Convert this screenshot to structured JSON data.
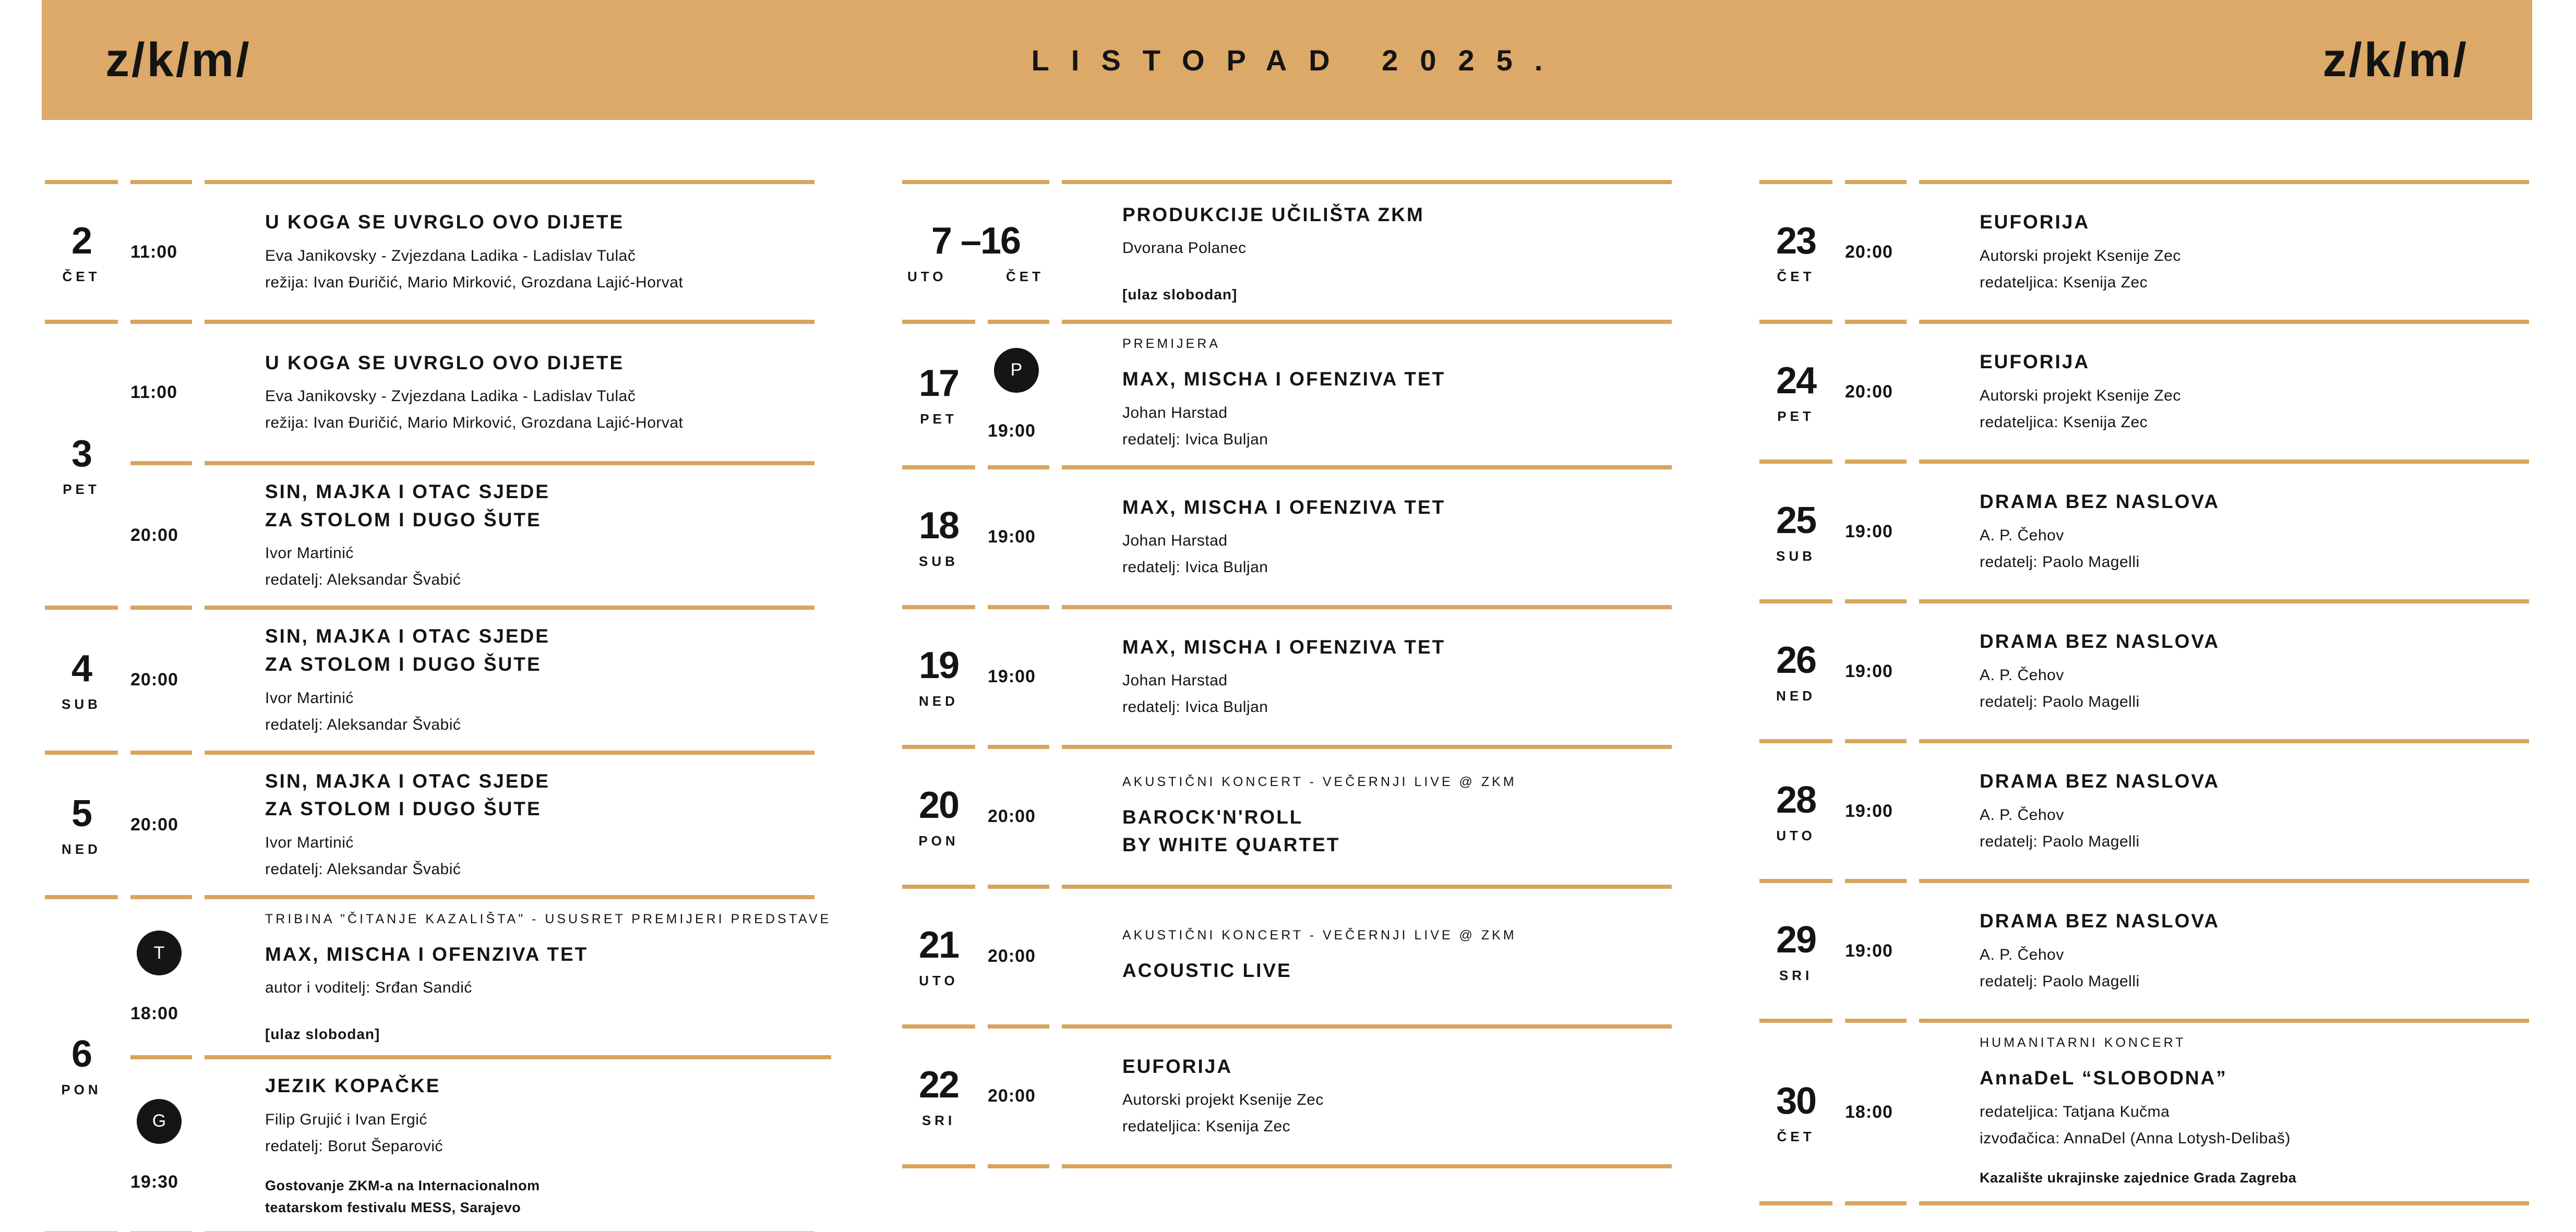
{
  "header": {
    "logo_left": "z/k/m/",
    "title": "LISTOPAD 2025.",
    "logo_right": "z/k/m/"
  },
  "colors": {
    "header_bg": "#dca968",
    "rule_gold": "#d9a45f",
    "badge_bg": "#151515",
    "text": "#141414"
  },
  "columns": [
    {
      "rows": [
        {
          "date": "2",
          "days": [
            "ČET"
          ],
          "events": [
            {
              "time": "11:00",
              "title_lines": [
                "U KOGA SE UVRGLO OVO DIJETE"
              ],
              "meta": [
                "Eva Janikovsky - Zvjezdana Ladika - Ladislav Tulač",
                "režija: Ivan Đuričić, Mario Mirković, Grozdana Lajić-Horvat"
              ]
            }
          ]
        },
        {
          "date": "3",
          "days": [
            "PET"
          ],
          "height": "double",
          "events": [
            {
              "time": "11:00",
              "title_lines": [
                "U KOGA SE UVRGLO OVO DIJETE"
              ],
              "meta": [
                "Eva Janikovsky - Zvjezdana Ladika - Ladislav Tulač",
                "režija: Ivan Đuričić, Mario Mirković, Grozdana Lajić-Horvat"
              ]
            },
            {
              "time": "20:00",
              "title_lines": [
                "SIN, MAJKA I OTAC SJEDE",
                "ZA STOLOM I DUGO ŠUTE"
              ],
              "meta": [
                "Ivor Martinić",
                "redatelj: Aleksandar Švabić"
              ]
            }
          ]
        },
        {
          "date": "4",
          "days": [
            "SUB"
          ],
          "events": [
            {
              "time": "20:00",
              "title_lines": [
                "SIN, MAJKA I OTAC SJEDE",
                "ZA STOLOM I DUGO ŠUTE"
              ],
              "meta": [
                "Ivor Martinić",
                "redatelj: Aleksandar Švabić"
              ]
            }
          ]
        },
        {
          "date": "5",
          "days": [
            "NED"
          ],
          "events": [
            {
              "time": "20:00",
              "title_lines": [
                "SIN, MAJKA I OTAC SJEDE",
                "ZA STOLOM I DUGO ŠUTE"
              ],
              "meta": [
                "Ivor Martinić",
                "redatelj: Aleksandar Švabić"
              ]
            }
          ]
        },
        {
          "date": "6",
          "days": [
            "PON"
          ],
          "height": "tall",
          "events": [
            {
              "badge": "T",
              "time": "18:00",
              "kicker": "TRIBINA \"ČITANJE KAZALIŠTA\" - USUSRET PREMIJERI PREDSTAVE",
              "title_lines": [
                "MAX, MISCHA I OFENZIVA TET"
              ],
              "meta": [
                "autor i voditelj: Srđan Sandić"
              ],
              "note": "[ulaz slobodan]"
            },
            {
              "badge": "G",
              "time": "19:30",
              "title_lines": [
                "JEZIK KOPAČKE"
              ],
              "meta": [
                "Filip Grujić i Ivan Ergić",
                "redatelj: Borut Šeparović"
              ],
              "bold_note_lines": [
                "Gostovanje ZKM-a na Internacionalnom",
                "teatarskom festivalu MESS, Sarajevo"
              ]
            }
          ]
        }
      ]
    },
    {
      "rows": [
        {
          "date": "7 –16",
          "days": [
            "UTO",
            "ČET"
          ],
          "merged": true,
          "events": [
            {
              "title_lines": [
                "PRODUKCIJE UČILIŠTA ZKM"
              ],
              "meta": [
                "Dvorana Polanec"
              ],
              "note": "[ulaz slobodan]"
            }
          ]
        },
        {
          "date": "17",
          "days": [
            "PET"
          ],
          "events": [
            {
              "badge": "P",
              "time": "19:00",
              "kicker": "PREMIJERA",
              "title_lines": [
                "MAX, MISCHA I OFENZIVA TET"
              ],
              "meta": [
                "Johan Harstad",
                "redatelj: Ivica Buljan"
              ]
            }
          ]
        },
        {
          "date": "18",
          "days": [
            "SUB"
          ],
          "events": [
            {
              "time": "19:00",
              "title_lines": [
                "MAX, MISCHA I OFENZIVA TET"
              ],
              "meta": [
                "Johan Harstad",
                "redatelj: Ivica Buljan"
              ]
            }
          ]
        },
        {
          "date": "19",
          "days": [
            "NED"
          ],
          "events": [
            {
              "time": "19:00",
              "title_lines": [
                "MAX, MISCHA I OFENZIVA TET"
              ],
              "meta": [
                "Johan Harstad",
                "redatelj: Ivica Buljan"
              ]
            }
          ]
        },
        {
          "date": "20",
          "days": [
            "PON"
          ],
          "events": [
            {
              "time": "20:00",
              "kicker": "AKUSTIČNI KONCERT - VEČERNJI LIVE @ ZKM",
              "title_lines": [
                "BAROCK'N'ROLL",
                "BY WHITE QUARTET"
              ]
            }
          ]
        },
        {
          "date": "21",
          "days": [
            "UTO"
          ],
          "events": [
            {
              "time": "20:00",
              "kicker": "AKUSTIČNI KONCERT - VEČERNJI LIVE @ ZKM",
              "title_lines": [
                "ACOUSTIC LIVE"
              ]
            }
          ]
        },
        {
          "date": "22",
          "days": [
            "SRI"
          ],
          "events": [
            {
              "time": "20:00",
              "title_lines": [
                "EUFORIJA"
              ],
              "meta": [
                "Autorski projekt Ksenije Zec",
                "redateljica: Ksenija Zec"
              ]
            }
          ]
        }
      ]
    },
    {
      "rows": [
        {
          "date": "23",
          "days": [
            "ČET"
          ],
          "events": [
            {
              "time": "20:00",
              "title_lines": [
                "EUFORIJA"
              ],
              "meta": [
                "Autorski projekt Ksenije Zec",
                "redateljica: Ksenija Zec"
              ]
            }
          ]
        },
        {
          "date": "24",
          "days": [
            "PET"
          ],
          "events": [
            {
              "time": "20:00",
              "title_lines": [
                "EUFORIJA"
              ],
              "meta": [
                "Autorski projekt Ksenije Zec",
                "redateljica: Ksenija Zec"
              ]
            }
          ]
        },
        {
          "date": "25",
          "days": [
            "SUB"
          ],
          "events": [
            {
              "time": "19:00",
              "title_lines": [
                "DRAMA BEZ NASLOVA"
              ],
              "meta": [
                "A. P. Čehov",
                "redatelj: Paolo Magelli"
              ]
            }
          ]
        },
        {
          "date": "26",
          "days": [
            "NED"
          ],
          "events": [
            {
              "time": "19:00",
              "title_lines": [
                "DRAMA BEZ NASLOVA"
              ],
              "meta": [
                "A. P. Čehov",
                "redatelj: Paolo Magelli"
              ]
            }
          ]
        },
        {
          "date": "28",
          "days": [
            "UTO"
          ],
          "events": [
            {
              "time": "19:00",
              "title_lines": [
                "DRAMA BEZ NASLOVA"
              ],
              "meta": [
                "A. P. Čehov",
                "redatelj: Paolo Magelli"
              ]
            }
          ]
        },
        {
          "date": "29",
          "days": [
            "SRI"
          ],
          "events": [
            {
              "time": "19:00",
              "title_lines": [
                "DRAMA BEZ NASLOVA"
              ],
              "meta": [
                "A. P. Čehov",
                "redatelj: Paolo Magelli"
              ]
            }
          ]
        },
        {
          "date": "30",
          "days": [
            "ČET"
          ],
          "height": "big",
          "events": [
            {
              "time": "18:00",
              "kicker": "HUMANITARNI KONCERT",
              "title_lines": [
                "AnnaDeL “SLOBODNA”"
              ],
              "meta": [
                "redateljica: Tatjana Kučma",
                "izvođačica: AnnaDel (Anna Lotysh-Delibaš)"
              ],
              "bold_note_lines": [
                "Kazalište ukrajinske zajednice Grada Zagreba"
              ]
            }
          ]
        }
      ]
    }
  ]
}
